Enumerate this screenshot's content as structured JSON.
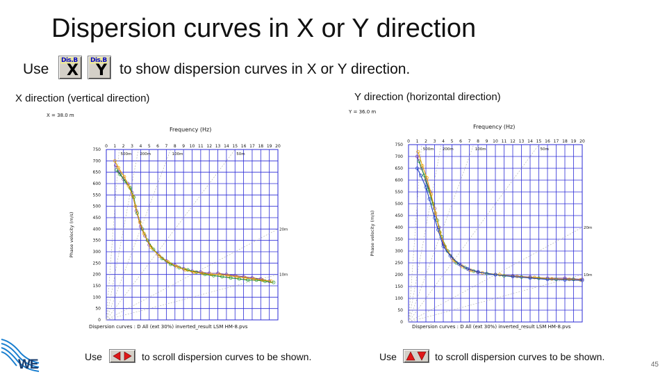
{
  "slide": {
    "title": "Dispersion curves in X or Y direction",
    "use_line_prefix": "Use",
    "use_line_suffix": "to show dispersion curves in X or Y direction.",
    "page_number": "45",
    "logo_text": "WE"
  },
  "buttons": {
    "disp_x": {
      "tag": "Dis.B",
      "glyph": "X"
    },
    "disp_y": {
      "tag": "Dis.B",
      "glyph": "Y"
    }
  },
  "colors": {
    "grid": "#2b2bd6",
    "curve_a": "#7a3fa0",
    "curve_b": "#1f8f2f",
    "curve_c": "#e8a000",
    "curve_d": "#1a40c0",
    "curve_e": "#e02020",
    "curve_f": "#10a0c0"
  },
  "panels": [
    {
      "caption": "X direction (vertical direction)",
      "position_label": "X = 38.0 m",
      "freq_label": "Frequency (Hz)",
      "y_label": "Phase velocity (m/s)",
      "footer": "Dispersion curves : D All (ext 30%) inverted_result LSM HM-8.pvs",
      "use_prefix": "Use",
      "use_suffix": "to scroll dispersion curves to be shown.",
      "scroll_icons": [
        "left-arrow-icon",
        "right-arrow-icon"
      ]
    },
    {
      "caption": "Y direction (horizontal direction)",
      "position_label": "Y = 36.0 m",
      "freq_label": "Frequency (Hz)",
      "y_label": "Phase velocity (m/s)",
      "footer": "Dispersion curves : D All (ext 30%) inverted_result LSM HM-8.pvs",
      "use_prefix": "Use",
      "use_suffix": "to scroll dispersion curves to be shown.",
      "scroll_icons": [
        "up-arrow-icon",
        "down-arrow-icon"
      ]
    }
  ],
  "chart_data": [
    {
      "type": "line",
      "title": "Frequency (Hz)",
      "ylabel": "Phase velocity (m/s)",
      "x_ticks": [
        "0",
        "1",
        "2",
        "3",
        "4",
        "5",
        "6",
        "7",
        "8",
        "9",
        "10",
        "11",
        "12",
        "13",
        "14",
        "15",
        "16",
        "17",
        "18",
        "19",
        "20"
      ],
      "y_ticks": [
        "0",
        "50",
        "100",
        "150",
        "200",
        "250",
        "300",
        "350",
        "400",
        "450",
        "500",
        "550",
        "600",
        "650",
        "700",
        "750"
      ],
      "xlim": [
        0,
        20
      ],
      "ylim": [
        0,
        750
      ],
      "wavelength_labels": [
        "500m",
        "200m",
        "100m",
        "50m",
        "20m",
        "10m"
      ],
      "series": [
        {
          "values": [
            [
              1.1,
              680
            ],
            [
              1.5,
              650
            ],
            [
              2.0,
              620
            ],
            [
              2.5,
              600
            ],
            [
              3.0,
              560
            ],
            [
              3.5,
              480
            ],
            [
              4.0,
              410
            ],
            [
              4.5,
              370
            ],
            [
              5.0,
              330
            ],
            [
              6.0,
              290
            ],
            [
              7.0,
              260
            ],
            [
              8.0,
              240
            ],
            [
              9.0,
              225
            ],
            [
              10.0,
              215
            ],
            [
              11.0,
              210
            ],
            [
              12.0,
              205
            ],
            [
              13.0,
              205
            ],
            [
              14.0,
              200
            ],
            [
              15.0,
              195
            ],
            [
              16.0,
              190
            ],
            [
              17.0,
              185
            ],
            [
              18.0,
              180
            ],
            [
              19.0,
              170
            ]
          ]
        },
        {
          "values": [
            [
              1.2,
              660
            ],
            [
              1.6,
              640
            ],
            [
              2.2,
              610
            ],
            [
              2.8,
              580
            ],
            [
              3.2,
              540
            ],
            [
              3.6,
              470
            ],
            [
              4.2,
              400
            ],
            [
              4.8,
              350
            ],
            [
              5.5,
              310
            ],
            [
              6.5,
              270
            ],
            [
              7.5,
              245
            ],
            [
              8.5,
              230
            ],
            [
              9.5,
              220
            ],
            [
              10.5,
              210
            ],
            [
              11.5,
              200
            ],
            [
              12.5,
              195
            ],
            [
              13.5,
              190
            ],
            [
              14.5,
              185
            ],
            [
              15.5,
              180
            ],
            [
              16.5,
              175
            ],
            [
              17.5,
              175
            ],
            [
              18.5,
              170
            ],
            [
              19.5,
              165
            ]
          ]
        },
        {
          "values": [
            [
              1.0,
              700
            ],
            [
              1.4,
              670
            ],
            [
              2.1,
              630
            ],
            [
              2.6,
              590
            ],
            [
              3.1,
              545
            ],
            [
              3.4,
              500
            ],
            [
              3.9,
              430
            ],
            [
              4.4,
              380
            ],
            [
              5.2,
              320
            ],
            [
              6.2,
              280
            ],
            [
              7.2,
              255
            ],
            [
              8.2,
              235
            ],
            [
              9.2,
              220
            ],
            [
              10.2,
              210
            ],
            [
              11.2,
              205
            ],
            [
              12.2,
              200
            ],
            [
              13.2,
              200
            ],
            [
              14.2,
              195
            ],
            [
              15.2,
              190
            ],
            [
              16.2,
              185
            ],
            [
              17.2,
              180
            ],
            [
              18.2,
              175
            ],
            [
              19.2,
              170
            ]
          ]
        }
      ]
    },
    {
      "type": "line",
      "title": "Frequency (Hz)",
      "ylabel": "Phase velocity (m/s)",
      "x_ticks": [
        "0",
        "1",
        "2",
        "3",
        "4",
        "5",
        "6",
        "7",
        "8",
        "9",
        "10",
        "11",
        "12",
        "13",
        "14",
        "15",
        "16",
        "17",
        "18",
        "19",
        "20"
      ],
      "y_ticks": [
        "0",
        "50",
        "100",
        "150",
        "200",
        "250",
        "300",
        "350",
        "400",
        "450",
        "500",
        "550",
        "600",
        "650",
        "700",
        "750"
      ],
      "xlim": [
        0,
        20
      ],
      "ylim": [
        0,
        750
      ],
      "wavelength_labels": [
        "500m",
        "200m",
        "100m",
        "50m",
        "20m",
        "10m"
      ],
      "series": [
        {
          "values": [
            [
              1.0,
              700
            ],
            [
              1.5,
              650
            ],
            [
              2.0,
              600
            ],
            [
              2.5,
              550
            ],
            [
              3.0,
              480
            ],
            [
              3.5,
              400
            ],
            [
              4.0,
              330
            ],
            [
              5.0,
              270
            ],
            [
              6.0,
              240
            ],
            [
              7.0,
              220
            ],
            [
              8.0,
              210
            ],
            [
              10.0,
              200
            ],
            [
              12.0,
              195
            ],
            [
              14.0,
              190
            ],
            [
              16.0,
              185
            ],
            [
              18.0,
              185
            ],
            [
              20.0,
              180
            ]
          ]
        },
        {
          "values": [
            [
              1.2,
              680
            ],
            [
              1.8,
              620
            ],
            [
              2.3,
              560
            ],
            [
              2.8,
              500
            ],
            [
              3.3,
              430
            ],
            [
              3.8,
              360
            ],
            [
              4.5,
              300
            ],
            [
              5.5,
              250
            ],
            [
              6.5,
              230
            ],
            [
              7.5,
              215
            ],
            [
              9.0,
              205
            ],
            [
              11.0,
              195
            ],
            [
              13.0,
              190
            ],
            [
              15.0,
              185
            ],
            [
              17.0,
              180
            ],
            [
              19.0,
              180
            ]
          ]
        },
        {
          "values": [
            [
              1.1,
              720
            ],
            [
              1.6,
              660
            ],
            [
              2.1,
              610
            ],
            [
              2.6,
              540
            ],
            [
              3.1,
              460
            ],
            [
              3.6,
              380
            ],
            [
              4.2,
              320
            ],
            [
              5.2,
              260
            ],
            [
              6.2,
              235
            ],
            [
              7.2,
              218
            ],
            [
              8.5,
              208
            ],
            [
              10.5,
              200
            ],
            [
              12.5,
              192
            ],
            [
              14.5,
              188
            ],
            [
              16.5,
              182
            ],
            [
              18.5,
              180
            ],
            [
              19.8,
              178
            ]
          ]
        },
        {
          "values": [
            [
              1.0,
              650
            ],
            [
              1.4,
              620
            ],
            [
              2.0,
              570
            ],
            [
              2.4,
              520
            ],
            [
              3.0,
              440
            ],
            [
              3.4,
              390
            ],
            [
              4.0,
              320
            ],
            [
              4.8,
              280
            ],
            [
              5.8,
              245
            ],
            [
              6.8,
              225
            ],
            [
              8.0,
              212
            ],
            [
              10.0,
              200
            ],
            [
              12.0,
              192
            ],
            [
              14.0,
              186
            ],
            [
              16.0,
              180
            ],
            [
              18.0,
              178
            ],
            [
              20.0,
              176
            ]
          ]
        }
      ]
    }
  ]
}
